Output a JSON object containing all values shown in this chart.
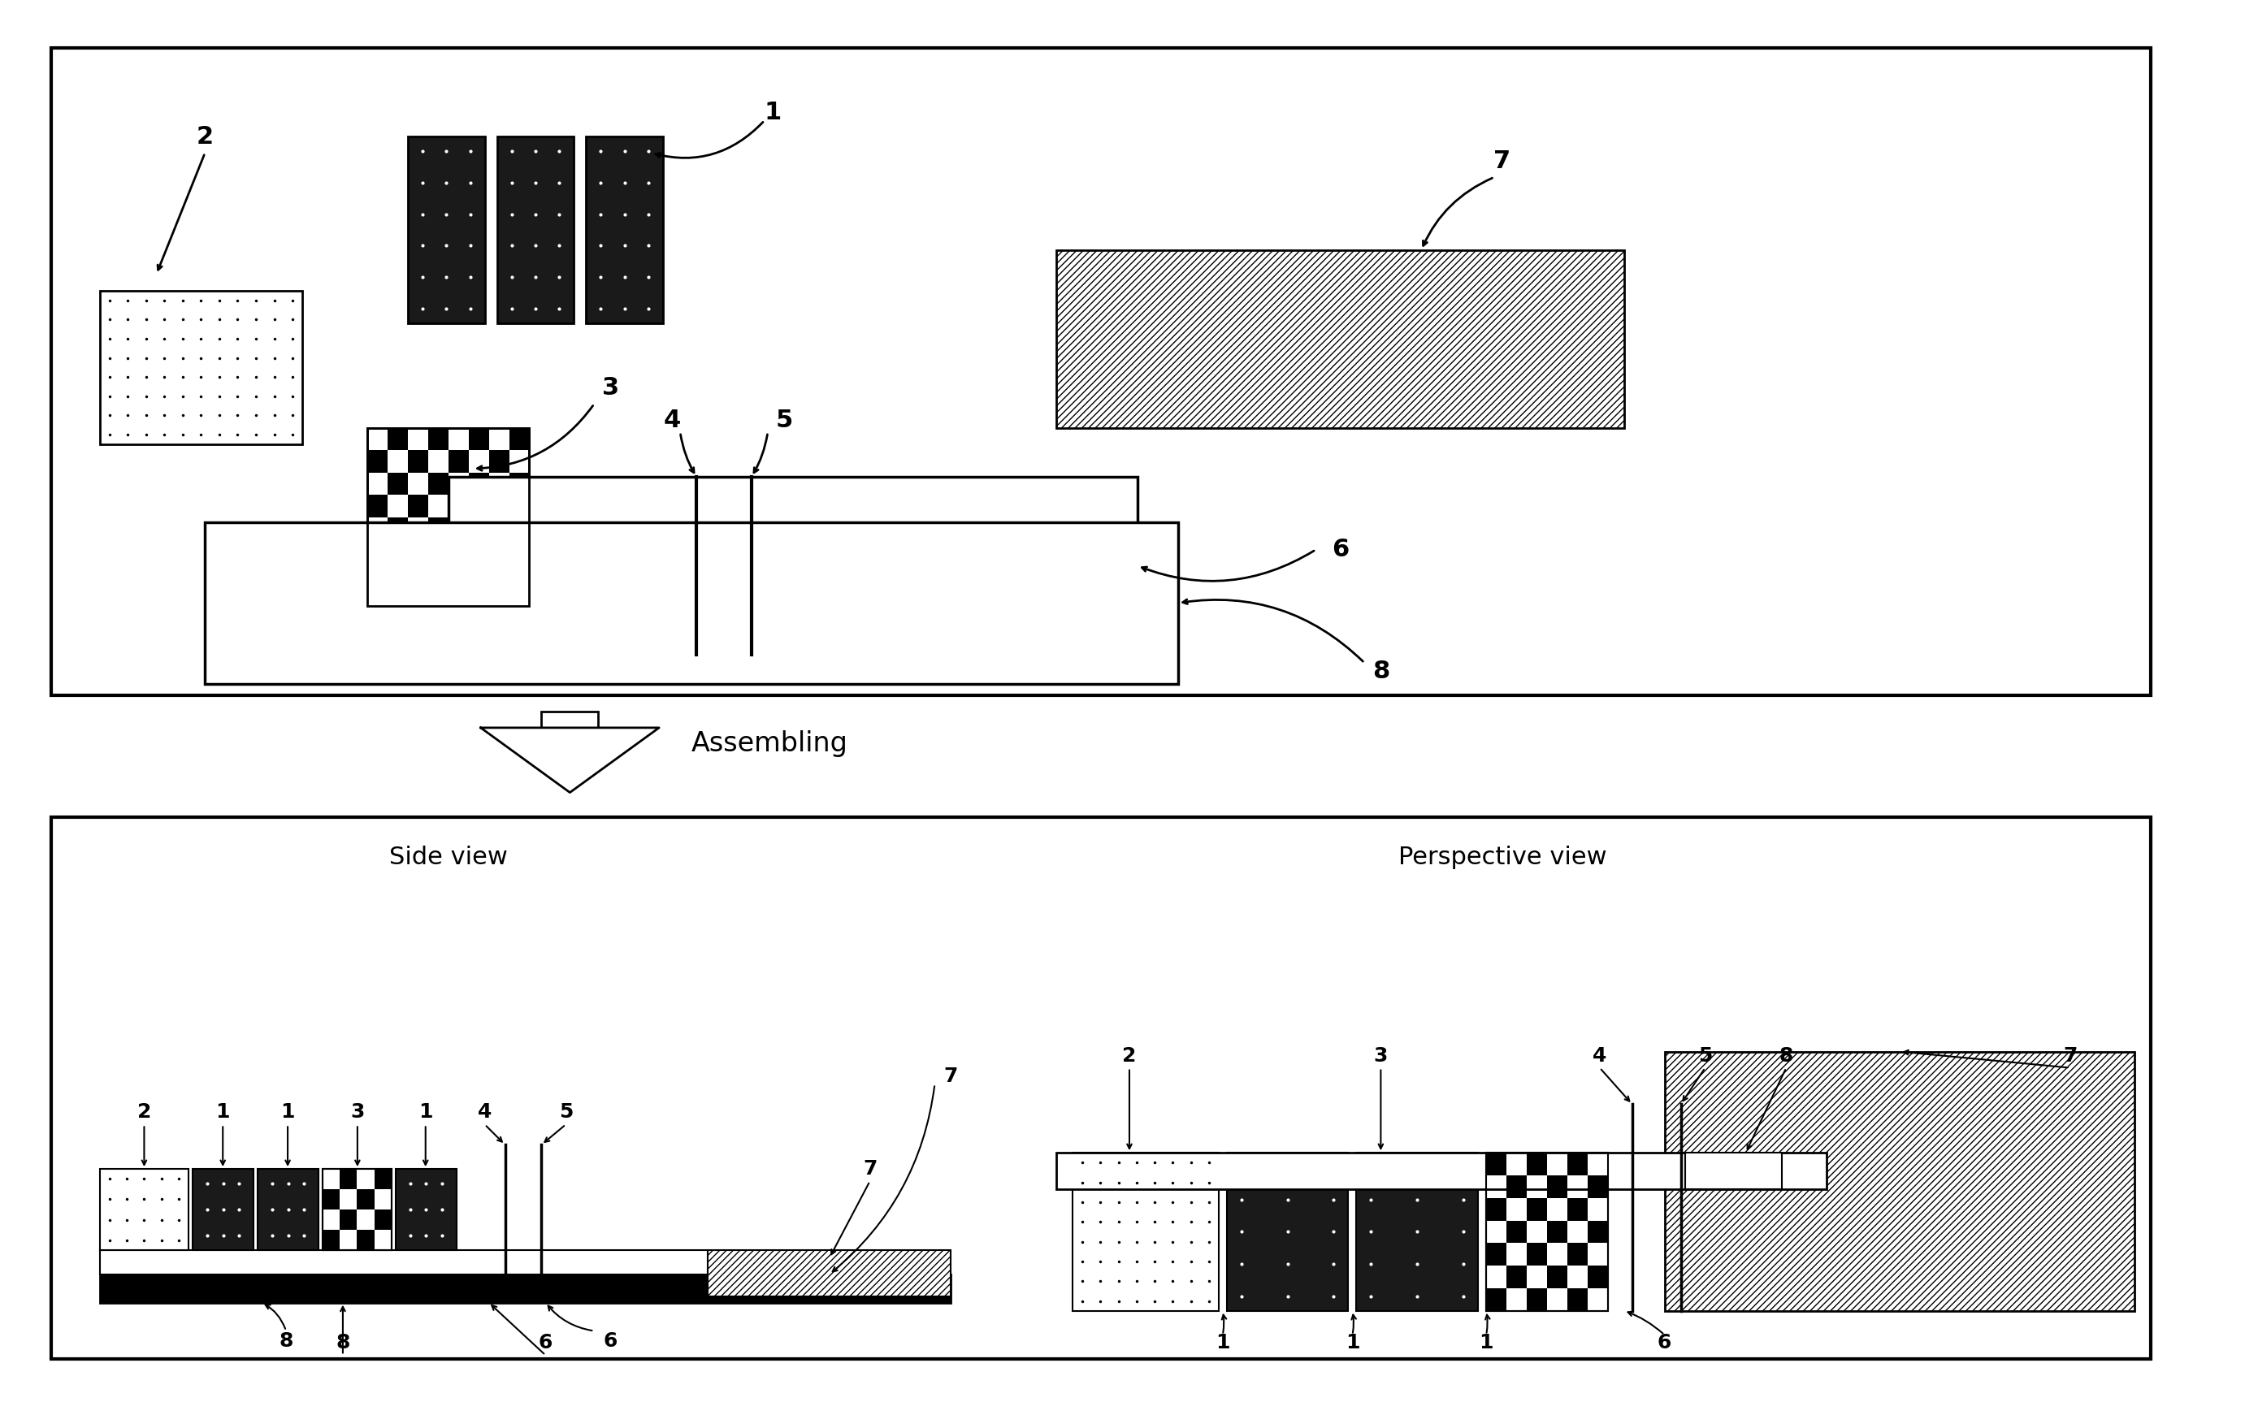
{
  "bg_color": "#ffffff",
  "line_color": "#000000",
  "assembling_text": "Assembling",
  "side_view_text": "Side view",
  "perspective_view_text": "Perspective view"
}
